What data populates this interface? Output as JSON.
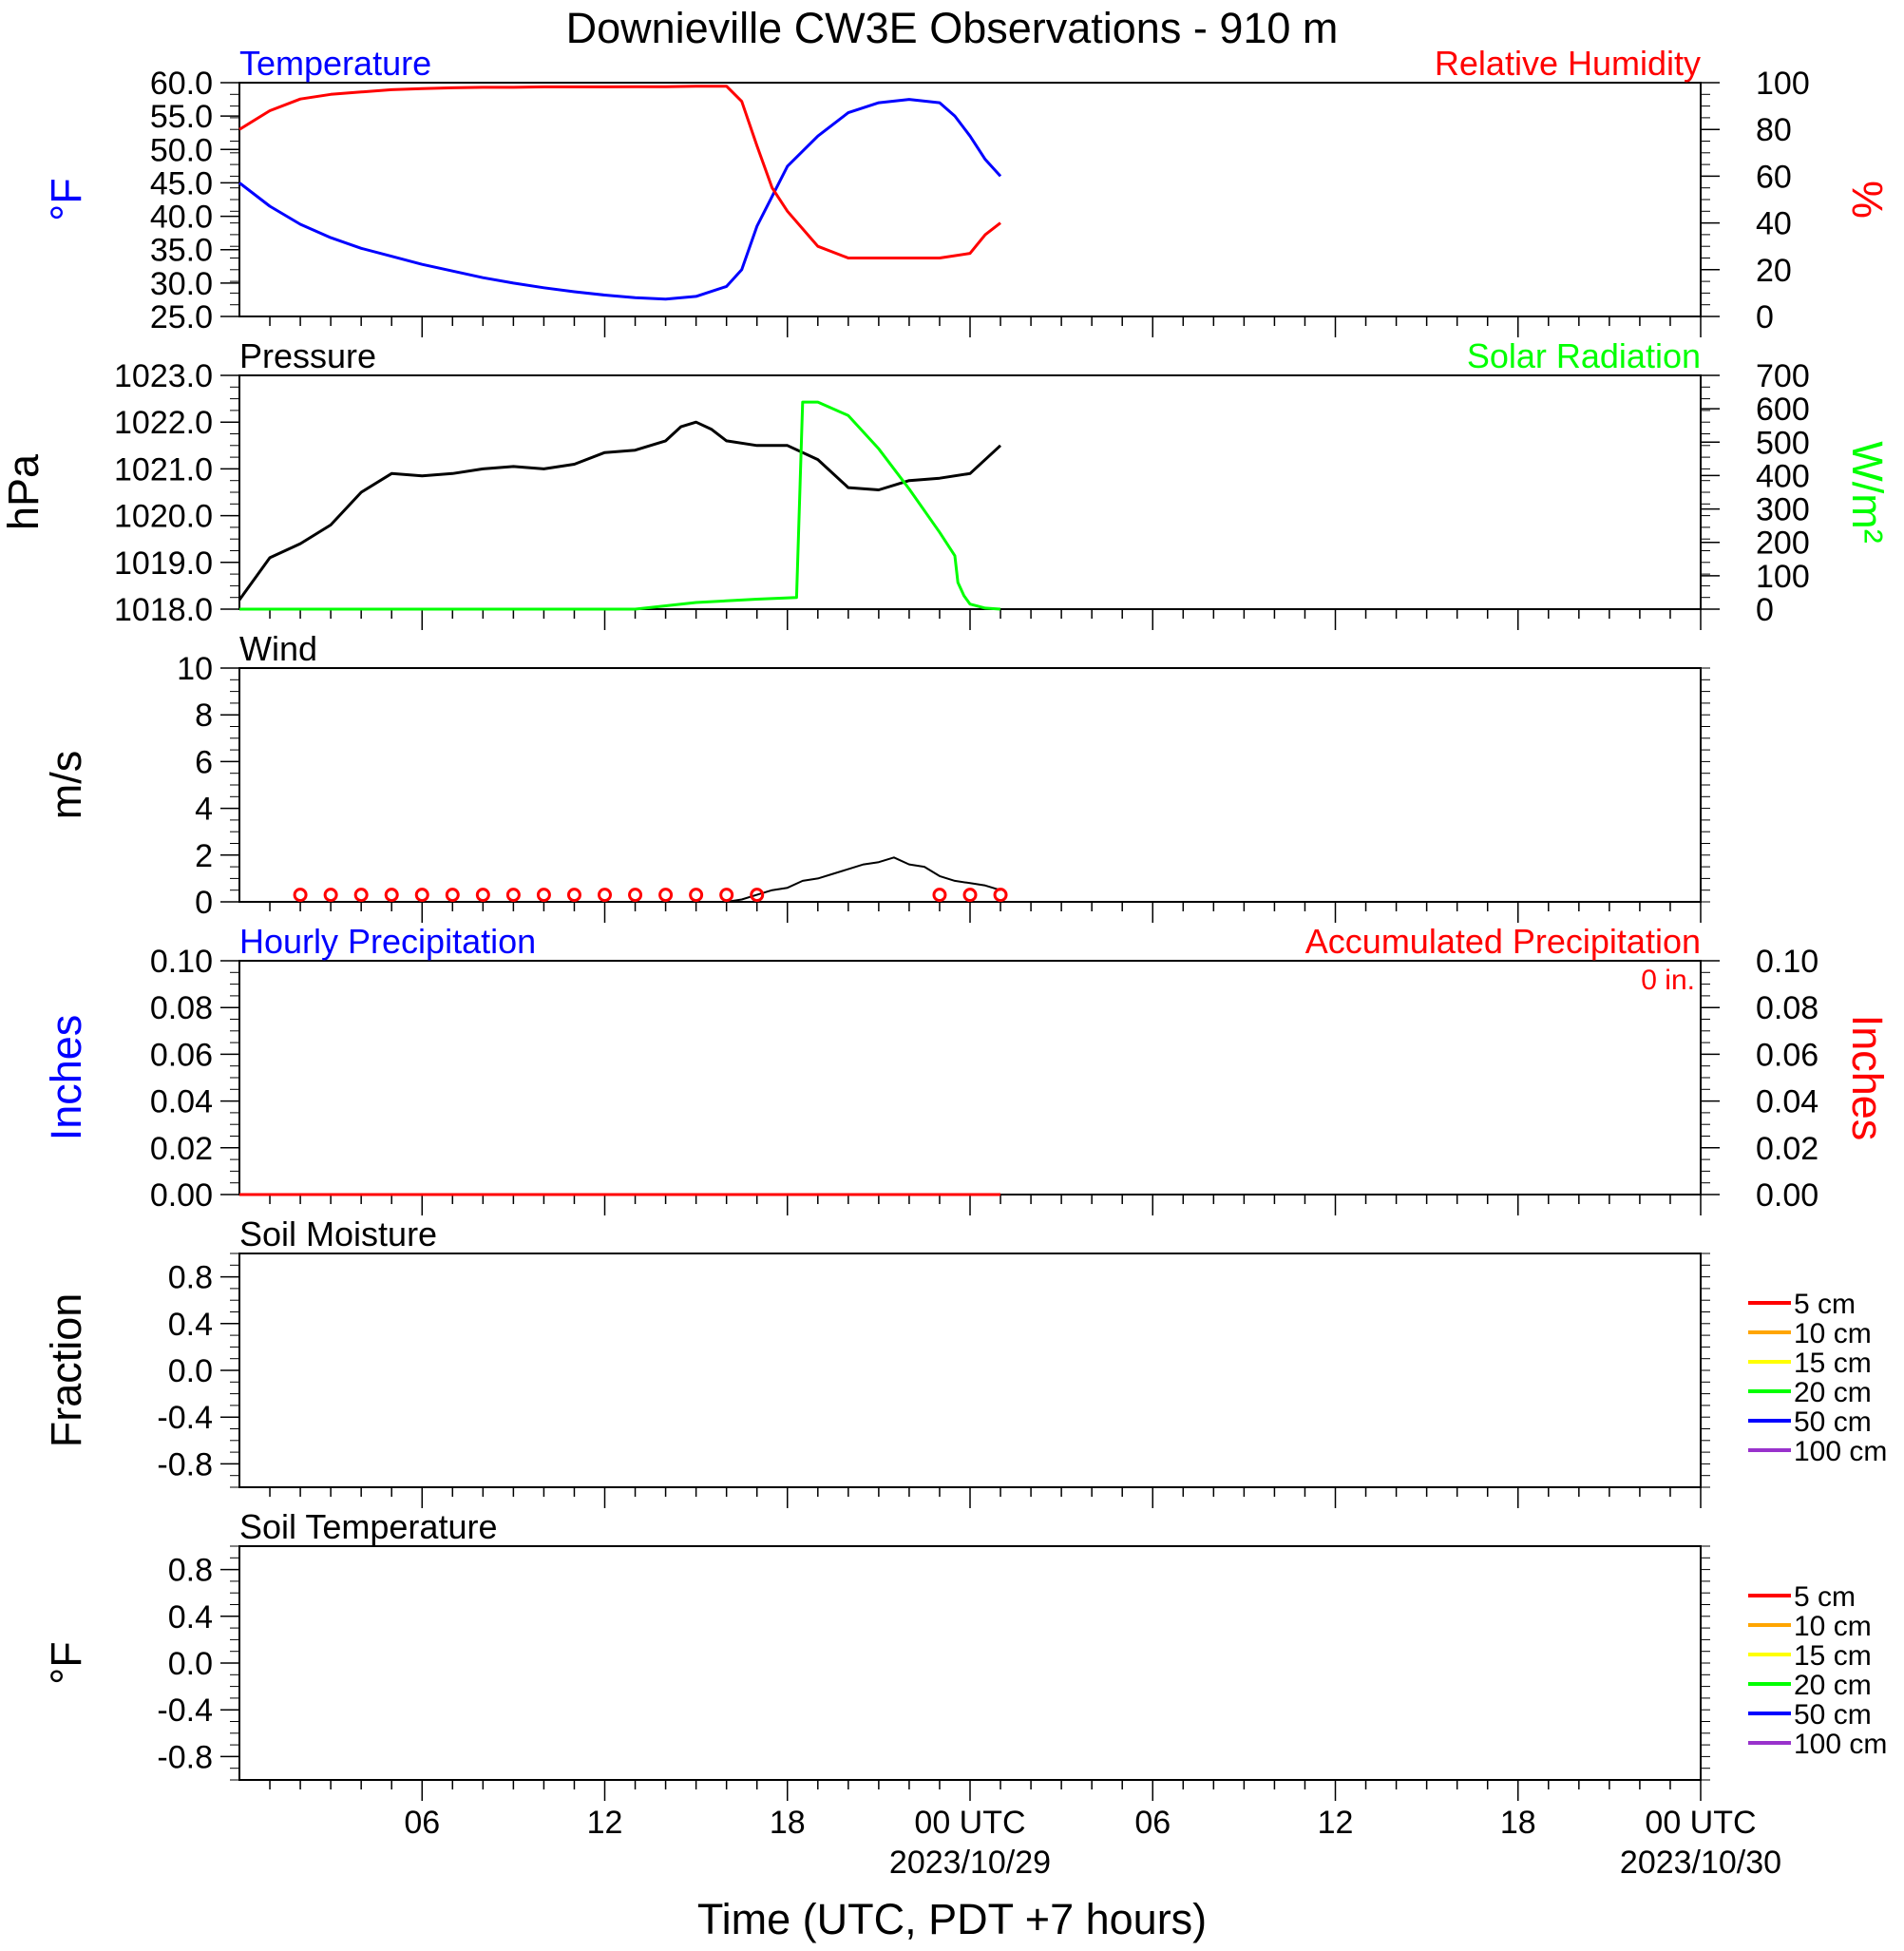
{
  "title": "Downieville CW3E Observations - 910 m",
  "x_axis": {
    "label": "Time (UTC, PDT +7 hours)",
    "ticks": [
      "06",
      "12",
      "18",
      "00 UTC",
      "06",
      "12",
      "18",
      "00 UTC"
    ],
    "dates": [
      "2023/10/29",
      "2023/10/30"
    ]
  },
  "colors": {
    "temperature": "#0000ff",
    "humidity": "#ff0000",
    "pressure": "#000000",
    "solar": "#00ff00",
    "wind": "#000000",
    "wind_barb": "#ff0000",
    "precip_hourly": "#0000ff",
    "precip_accum": "#ff0000",
    "soil_5": "#ff0000",
    "soil_10": "#ffa500",
    "soil_15": "#ffff00",
    "soil_20": "#00ff00",
    "soil_50": "#0000ff",
    "soil_100": "#9932cc"
  },
  "chart_data": [
    {
      "type": "line",
      "panel": "temperature-humidity",
      "left_title": "Temperature",
      "right_title": "Relative Humidity",
      "left_unit": "°F",
      "right_unit": "%",
      "left_ylim": [
        25,
        60
      ],
      "right_ylim": [
        0,
        100
      ],
      "left_ticks": [
        "60.0",
        "55.0",
        "50.0",
        "45.0",
        "40.0",
        "35.0",
        "30.0",
        "25.0"
      ],
      "right_ticks": [
        "100",
        "80",
        "60",
        "40",
        "20",
        "0"
      ],
      "x_hours_range": [
        1,
        49
      ],
      "series": [
        {
          "name": "Temperature",
          "axis": "left",
          "x": [
            1,
            2,
            3,
            4,
            5,
            6,
            7,
            8,
            9,
            10,
            11,
            12,
            13,
            14,
            15,
            16,
            17,
            17.5,
            18,
            19,
            20,
            21,
            22,
            23,
            24,
            24.5,
            25,
            25.5,
            26
          ],
          "y": [
            45.0,
            41.5,
            38.8,
            36.8,
            35.2,
            34.0,
            32.8,
            31.8,
            30.8,
            30.0,
            29.3,
            28.7,
            28.2,
            27.8,
            27.6,
            28.0,
            29.5,
            32.0,
            38.5,
            47.5,
            52.0,
            55.5,
            57.0,
            57.5,
            57.0,
            55.0,
            52.0,
            48.5,
            46.0
          ]
        },
        {
          "name": "Relative Humidity",
          "axis": "right",
          "x": [
            1,
            2,
            3,
            4,
            5,
            6,
            7,
            8,
            9,
            10,
            11,
            12,
            13,
            14,
            15,
            16,
            17,
            17.5,
            18,
            18.5,
            19,
            20,
            21,
            22,
            23,
            24,
            25,
            25.5,
            26
          ],
          "y": [
            80,
            88,
            93,
            95,
            96,
            97,
            97.5,
            97.8,
            98,
            98,
            98.2,
            98.2,
            98.2,
            98.3,
            98.3,
            98.5,
            98.5,
            92,
            73,
            55,
            45,
            30,
            25,
            25,
            25,
            25,
            27,
            35,
            40
          ]
        }
      ]
    },
    {
      "type": "line",
      "panel": "pressure-solar",
      "left_title": "Pressure",
      "right_title": "Solar Radiation",
      "left_unit": "hPa",
      "right_unit": "W/m2",
      "left_ylim": [
        1018,
        1023
      ],
      "right_ylim": [
        0,
        700
      ],
      "left_ticks": [
        "1023.0",
        "1022.0",
        "1021.0",
        "1020.0",
        "1019.0",
        "1018.0"
      ],
      "right_ticks": [
        "700",
        "600",
        "500",
        "400",
        "300",
        "200",
        "100",
        "0"
      ],
      "x_hours_range": [
        1,
        49
      ],
      "series": [
        {
          "name": "Pressure",
          "axis": "left",
          "x": [
            1,
            2,
            3,
            4,
            5,
            6,
            7,
            8,
            9,
            10,
            11,
            12,
            13,
            14,
            15,
            15.5,
            16,
            16.5,
            17,
            18,
            19,
            20,
            21,
            22,
            23,
            24,
            25,
            26
          ],
          "y": [
            1018.2,
            1019.1,
            1019.4,
            1019.8,
            1020.5,
            1020.9,
            1020.85,
            1020.9,
            1021.0,
            1021.05,
            1021.0,
            1021.1,
            1021.35,
            1021.4,
            1021.6,
            1021.9,
            1022.0,
            1021.85,
            1021.6,
            1021.5,
            1021.5,
            1021.2,
            1020.6,
            1020.55,
            1020.75,
            1020.8,
            1020.9,
            1021.5
          ]
        },
        {
          "name": "Solar Radiation",
          "axis": "right",
          "x": [
            1,
            14,
            16,
            18,
            19.3,
            19.5,
            20,
            21,
            22,
            23,
            24,
            24.5,
            24.6,
            24.8,
            25,
            25.5,
            26
          ],
          "y": [
            0,
            0,
            20,
            30,
            35,
            620,
            620,
            580,
            480,
            360,
            230,
            160,
            80,
            40,
            15,
            3,
            0
          ]
        }
      ]
    },
    {
      "type": "line",
      "panel": "wind",
      "left_title": "Wind",
      "left_unit": "m/s",
      "ylim": [
        0,
        10
      ],
      "left_ticks": [
        "10",
        "8",
        "6",
        "4",
        "2",
        "0"
      ],
      "x_hours_range": [
        1,
        49
      ],
      "series": [
        {
          "name": "Wind",
          "x": [
            1,
            17,
            17.5,
            18,
            18.5,
            19,
            19.5,
            20,
            20.5,
            21,
            21.5,
            22,
            22.5,
            23,
            23.5,
            24,
            24.5,
            25,
            25.5,
            26
          ],
          "y": [
            0,
            0,
            0.1,
            0.3,
            0.5,
            0.6,
            0.9,
            1.0,
            1.2,
            1.4,
            1.6,
            1.7,
            1.9,
            1.6,
            1.5,
            1.1,
            0.9,
            0.8,
            0.7,
            0.5
          ]
        }
      ],
      "calm_markers_x": [
        3,
        4,
        5,
        6,
        7,
        8,
        9,
        10,
        11,
        12,
        13,
        14,
        15,
        16,
        17,
        18,
        24,
        25,
        26
      ]
    },
    {
      "type": "line",
      "panel": "precipitation",
      "left_title": "Hourly Precipitation",
      "right_title": "Accumulated Precipitation",
      "annotation": "0 in.",
      "left_unit": "Inches",
      "right_unit": "Inches",
      "ylim": [
        0,
        0.1
      ],
      "left_ticks": [
        "0.10",
        "0.08",
        "0.06",
        "0.04",
        "0.02",
        "0.00"
      ],
      "right_ticks": [
        "0.10",
        "0.08",
        "0.06",
        "0.04",
        "0.02",
        "0.00"
      ],
      "x_hours_range": [
        1,
        49
      ],
      "series": [
        {
          "name": "Hourly Precipitation",
          "x": [
            1,
            26
          ],
          "y": [
            0,
            0
          ]
        },
        {
          "name": "Accumulated Precipitation",
          "x": [
            1,
            26
          ],
          "y": [
            0,
            0
          ]
        }
      ]
    },
    {
      "type": "line",
      "panel": "soil-moisture",
      "left_title": "Soil Moisture",
      "left_unit": "Fraction",
      "ylim": [
        -1,
        1
      ],
      "left_ticks": [
        "0.8",
        "0.4",
        "0.0",
        "-0.4",
        "-0.8"
      ],
      "legend": [
        "5 cm",
        "10 cm",
        "15 cm",
        "20 cm",
        "50 cm",
        "100 cm"
      ],
      "series": []
    },
    {
      "type": "line",
      "panel": "soil-temperature",
      "left_title": "Soil Temperature",
      "left_unit": "°F",
      "ylim": [
        -1,
        1
      ],
      "left_ticks": [
        "0.8",
        "0.4",
        "0.0",
        "-0.4",
        "-0.8"
      ],
      "legend": [
        "5 cm",
        "10 cm",
        "15 cm",
        "20 cm",
        "50 cm",
        "100 cm"
      ],
      "series": []
    }
  ]
}
